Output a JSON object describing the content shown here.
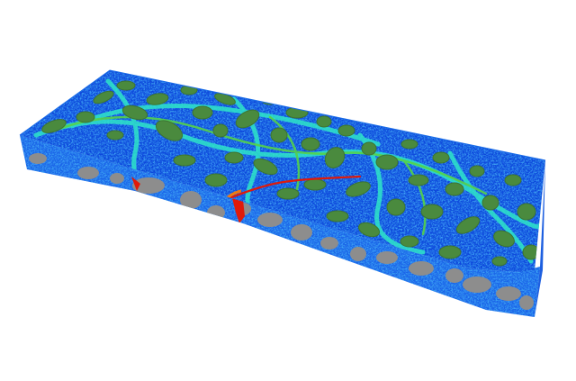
{
  "scene": {
    "description_free": true,
    "colors": {
      "background": "#ffffff",
      "matrix_deep": "#0a3fd8",
      "matrix_mid": "#1e78f0",
      "matrix_light": "#19c8e6",
      "boundary_cyan": "#2ee6c8",
      "boundary_green": "#55d24a",
      "inclusion_fill": "#4a8a3e",
      "inclusion_dark": "#3c7432",
      "side_gray": "#8d8d8d",
      "crack_red": "#e01a0a",
      "crack_orange": "#f07a10",
      "hot_yellow": "#e8e01a"
    }
  }
}
